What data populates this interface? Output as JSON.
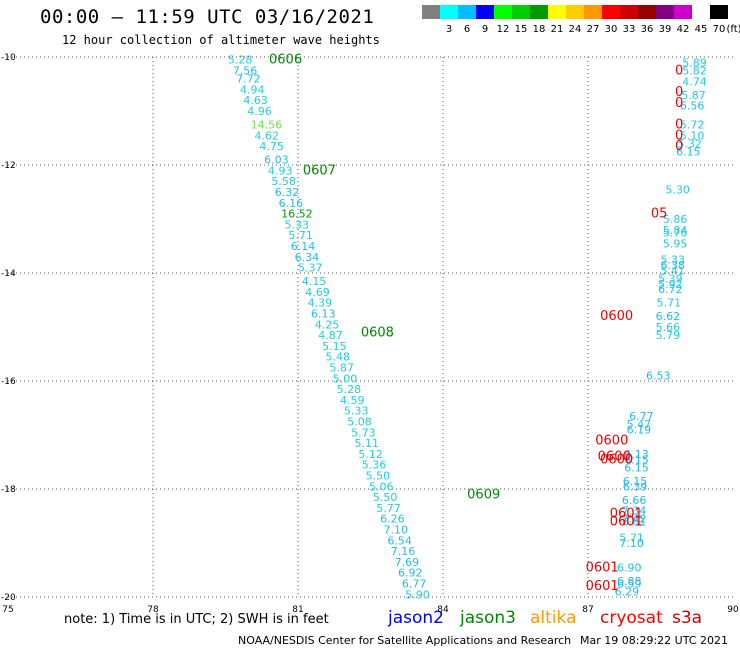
{
  "header": {
    "title": "00:00 — 11:59 UTC 03/16/2021",
    "subtitle": "12 hour collection of altimeter wave heights"
  },
  "legend": {
    "unit": "(ft)",
    "items": [
      {
        "label": "",
        "color": "#808080"
      },
      {
        "label": "3",
        "color": "#00ffff"
      },
      {
        "label": "6",
        "color": "#00bfff"
      },
      {
        "label": "9",
        "color": "#0000ff"
      },
      {
        "label": "12",
        "color": "#00ff00"
      },
      {
        "label": "15",
        "color": "#00cc00"
      },
      {
        "label": "18",
        "color": "#009900"
      },
      {
        "label": "21",
        "color": "#ffff00"
      },
      {
        "label": "24",
        "color": "#ffcc00"
      },
      {
        "label": "27",
        "color": "#ff9900"
      },
      {
        "label": "30",
        "color": "#ff0000"
      },
      {
        "label": "33",
        "color": "#cc0000"
      },
      {
        "label": "36",
        "color": "#990000"
      },
      {
        "label": "39",
        "color": "#800080"
      },
      {
        "label": "42",
        "color": "#cc00cc"
      },
      {
        "label": "45",
        "color": "#ffffff"
      },
      {
        "label": "70",
        "color": "#000000"
      }
    ]
  },
  "note": "note: 1) Time is in UTC; 2) SWH is in feet",
  "satellites": [
    {
      "name": "jason2",
      "color": "#0000ff"
    },
    {
      "name": "jason3",
      "color": "#008800"
    },
    {
      "name": "altika",
      "color": "#ff9900"
    },
    {
      "name": "cryosat",
      "color": "#ff0000"
    },
    {
      "name": "s3a",
      "color": "#cc0000"
    }
  ],
  "footer": {
    "org": "NOAA/NESDIS Center for Satellite Applications and Research",
    "timestamp": "Mar 19 08:29:22 UTC 2021"
  },
  "chart_data": {
    "type": "scatter",
    "xlim": [
      75,
      90
    ],
    "ylim": [
      -20,
      -10
    ],
    "xticks": [
      75,
      78,
      81,
      84,
      87,
      90
    ],
    "yticks": [
      -10,
      -12,
      -14,
      -16,
      -18,
      -20
    ],
    "ytick_labels": [
      "-10",
      "-12",
      "-14",
      "-16",
      "-18",
      "-20"
    ],
    "grid": true,
    "time_labels": [
      {
        "text": "0606",
        "x": 80.4,
        "y": -10.05,
        "color": "#008800"
      },
      {
        "text": "0607",
        "x": 81.1,
        "y": -12.1,
        "color": "#008800"
      },
      {
        "text": "0608",
        "x": 82.3,
        "y": -15.1,
        "color": "#008800"
      },
      {
        "text": "0609",
        "x": 84.5,
        "y": -18.1,
        "color": "#008800"
      },
      {
        "text": "0600",
        "x": 87.15,
        "y": -17.1,
        "color": "#ee0000"
      },
      {
        "text": "0600",
        "x": 87.2,
        "y": -17.4,
        "color": "#ee0000"
      },
      {
        "text": "0600",
        "x": 87.25,
        "y": -17.45,
        "color": "#ee0000"
      },
      {
        "text": "0601",
        "x": 87.45,
        "y": -18.45,
        "color": "#ee0000"
      },
      {
        "text": "0601",
        "x": 87.45,
        "y": -18.6,
        "color": "#ee0000"
      },
      {
        "text": "0601",
        "x": 86.95,
        "y": -19.45,
        "color": "#ee0000"
      },
      {
        "text": "0601",
        "x": 86.95,
        "y": -19.8,
        "color": "#ee0000"
      },
      {
        "text": "0600",
        "x": 87.25,
        "y": -14.8,
        "color": "#ee0000"
      },
      {
        "text": "05",
        "x": 88.3,
        "y": -12.9,
        "color": "#ee0000"
      },
      {
        "text": "0",
        "x": 88.8,
        "y": -10.25,
        "color": "#ee0000"
      },
      {
        "text": "0",
        "x": 88.8,
        "y": -10.65,
        "color": "#ee0000"
      },
      {
        "text": "0",
        "x": 88.8,
        "y": -10.85,
        "color": "#ee0000"
      },
      {
        "text": "0",
        "x": 88.8,
        "y": -11.25,
        "color": "#ee0000"
      },
      {
        "text": "0",
        "x": 88.8,
        "y": -11.45,
        "color": "#ee0000"
      },
      {
        "text": "0",
        "x": 88.8,
        "y": -11.65,
        "color": "#ee0000"
      }
    ],
    "series": [
      {
        "name": "jason3",
        "points": [
          {
            "x": 79.55,
            "y": -10.05,
            "v": 5.28
          },
          {
            "x": 79.65,
            "y": -10.25,
            "v": 7.56
          },
          {
            "x": 79.72,
            "y": -10.4,
            "v": 7.72
          },
          {
            "x": 79.8,
            "y": -10.6,
            "v": 4.94
          },
          {
            "x": 79.87,
            "y": -10.8,
            "v": 4.63
          },
          {
            "x": 79.95,
            "y": -11.0,
            "v": 4.96
          },
          {
            "x": 80.02,
            "y": -11.25,
            "v": 14.56
          },
          {
            "x": 80.1,
            "y": -11.45,
            "v": 4.62
          },
          {
            "x": 80.2,
            "y": -11.65,
            "v": 4.75
          },
          {
            "x": 80.3,
            "y": -11.9,
            "v": 6.03
          },
          {
            "x": 80.38,
            "y": -12.1,
            "v": 4.93
          },
          {
            "x": 80.45,
            "y": -12.3,
            "v": 5.58
          },
          {
            "x": 80.52,
            "y": -12.5,
            "v": 6.32
          },
          {
            "x": 80.6,
            "y": -12.7,
            "v": 6.16
          },
          {
            "x": 80.65,
            "y": -12.9,
            "v": 16.52
          },
          {
            "x": 80.72,
            "y": -13.1,
            "v": 5.33
          },
          {
            "x": 80.8,
            "y": -13.3,
            "v": 5.71
          },
          {
            "x": 80.85,
            "y": -13.5,
            "v": 6.14
          },
          {
            "x": 80.93,
            "y": -13.7,
            "v": 6.34
          },
          {
            "x": 81.0,
            "y": -13.9,
            "v": 5.37
          },
          {
            "x": 81.08,
            "y": -14.15,
            "v": 4.15
          },
          {
            "x": 81.15,
            "y": -14.35,
            "v": 4.69
          },
          {
            "x": 81.2,
            "y": -14.55,
            "v": 4.39
          },
          {
            "x": 81.27,
            "y": -14.75,
            "v": 6.13
          },
          {
            "x": 81.35,
            "y": -14.95,
            "v": 4.25
          },
          {
            "x": 81.42,
            "y": -15.15,
            "v": 4.87
          },
          {
            "x": 81.5,
            "y": -15.35,
            "v": 5.15
          },
          {
            "x": 81.57,
            "y": -15.55,
            "v": 5.48
          },
          {
            "x": 81.65,
            "y": -15.75,
            "v": 5.87
          },
          {
            "x": 81.72,
            "y": -15.95,
            "v": 5.0
          },
          {
            "x": 81.8,
            "y": -16.15,
            "v": 5.28
          },
          {
            "x": 81.87,
            "y": -16.35,
            "v": 4.59
          },
          {
            "x": 81.95,
            "y": -16.55,
            "v": 5.33
          },
          {
            "x": 82.02,
            "y": -16.75,
            "v": 5.08
          },
          {
            "x": 82.1,
            "y": -16.95,
            "v": 5.73
          },
          {
            "x": 82.17,
            "y": -17.15,
            "v": 5.11
          },
          {
            "x": 82.25,
            "y": -17.35,
            "v": 5.12
          },
          {
            "x": 82.32,
            "y": -17.55,
            "v": 5.36
          },
          {
            "x": 82.4,
            "y": -17.75,
            "v": 5.5
          },
          {
            "x": 82.47,
            "y": -17.95,
            "v": 5.06
          },
          {
            "x": 82.55,
            "y": -18.15,
            "v": 5.5
          },
          {
            "x": 82.62,
            "y": -18.35,
            "v": 5.77
          },
          {
            "x": 82.7,
            "y": -18.55,
            "v": 6.26
          },
          {
            "x": 82.77,
            "y": -18.75,
            "v": 7.1
          },
          {
            "x": 82.85,
            "y": -18.95,
            "v": 6.54
          },
          {
            "x": 82.92,
            "y": -19.15,
            "v": 7.16
          },
          {
            "x": 83.0,
            "y": -19.35,
            "v": 7.69
          },
          {
            "x": 83.07,
            "y": -19.55,
            "v": 6.92
          },
          {
            "x": 83.15,
            "y": -19.75,
            "v": 6.77
          },
          {
            "x": 83.22,
            "y": -19.95,
            "v": 5.9
          }
        ]
      },
      {
        "name": "cryosat",
        "points": [
          {
            "x": 88.95,
            "y": -10.1,
            "v": 5.89
          },
          {
            "x": 88.95,
            "y": -10.25,
            "v": 5.82
          },
          {
            "x": 88.95,
            "y": -10.45,
            "v": 4.74
          },
          {
            "x": 88.93,
            "y": -10.7,
            "v": 5.87
          },
          {
            "x": 88.9,
            "y": -10.9,
            "v": 6.56
          },
          {
            "x": 88.9,
            "y": -11.25,
            "v": 5.72
          },
          {
            "x": 88.9,
            "y": -11.45,
            "v": 5.1
          },
          {
            "x": 88.85,
            "y": -11.6,
            "v": 5.32
          },
          {
            "x": 88.82,
            "y": -11.75,
            "v": 6.15
          },
          {
            "x": 88.6,
            "y": -12.45,
            "v": 5.3
          },
          {
            "x": 88.55,
            "y": -13.0,
            "v": 5.86
          },
          {
            "x": 88.55,
            "y": -13.2,
            "v": 5.84
          },
          {
            "x": 88.55,
            "y": -13.25,
            "v": 5.76
          },
          {
            "x": 88.55,
            "y": -13.45,
            "v": 5.95
          },
          {
            "x": 88.5,
            "y": -13.75,
            "v": 5.33
          },
          {
            "x": 88.5,
            "y": -13.85,
            "v": 6.38
          },
          {
            "x": 88.5,
            "y": -13.95,
            "v": 5.41
          },
          {
            "x": 88.45,
            "y": -14.1,
            "v": 5.39
          },
          {
            "x": 88.45,
            "y": -14.2,
            "v": 5.92
          },
          {
            "x": 88.45,
            "y": -14.3,
            "v": 6.72
          },
          {
            "x": 88.42,
            "y": -14.55,
            "v": 5.71
          },
          {
            "x": 88.4,
            "y": -14.8,
            "v": 6.62
          },
          {
            "x": 88.4,
            "y": -15.0,
            "v": 5.66
          },
          {
            "x": 88.4,
            "y": -15.15,
            "v": 5.79
          },
          {
            "x": 88.2,
            "y": -15.9,
            "v": 6.53
          },
          {
            "x": 87.85,
            "y": -16.65,
            "v": 6.77
          },
          {
            "x": 87.8,
            "y": -16.8,
            "v": 5.47
          },
          {
            "x": 87.8,
            "y": -16.9,
            "v": 6.19
          },
          {
            "x": 87.75,
            "y": -17.35,
            "v": 6.13
          },
          {
            "x": 87.75,
            "y": -17.45,
            "v": 6.15
          },
          {
            "x": 87.75,
            "y": -17.6,
            "v": 6.15
          },
          {
            "x": 87.72,
            "y": -17.85,
            "v": 6.15
          },
          {
            "x": 87.72,
            "y": -17.95,
            "v": 6.39
          },
          {
            "x": 87.7,
            "y": -18.2,
            "v": 6.66
          },
          {
            "x": 87.7,
            "y": -18.4,
            "v": 7.34
          },
          {
            "x": 87.7,
            "y": -18.55,
            "v": 7.42
          },
          {
            "x": 87.7,
            "y": -18.6,
            "v": 6.61
          },
          {
            "x": 87.65,
            "y": -18.9,
            "v": 5.71
          },
          {
            "x": 87.65,
            "y": -19.0,
            "v": 7.1
          },
          {
            "x": 87.6,
            "y": -19.45,
            "v": 6.9
          },
          {
            "x": 87.6,
            "y": -19.7,
            "v": 6.88
          },
          {
            "x": 87.6,
            "y": -19.75,
            "v": 6.59
          },
          {
            "x": 87.55,
            "y": -19.9,
            "v": 6.29
          }
        ]
      }
    ]
  }
}
